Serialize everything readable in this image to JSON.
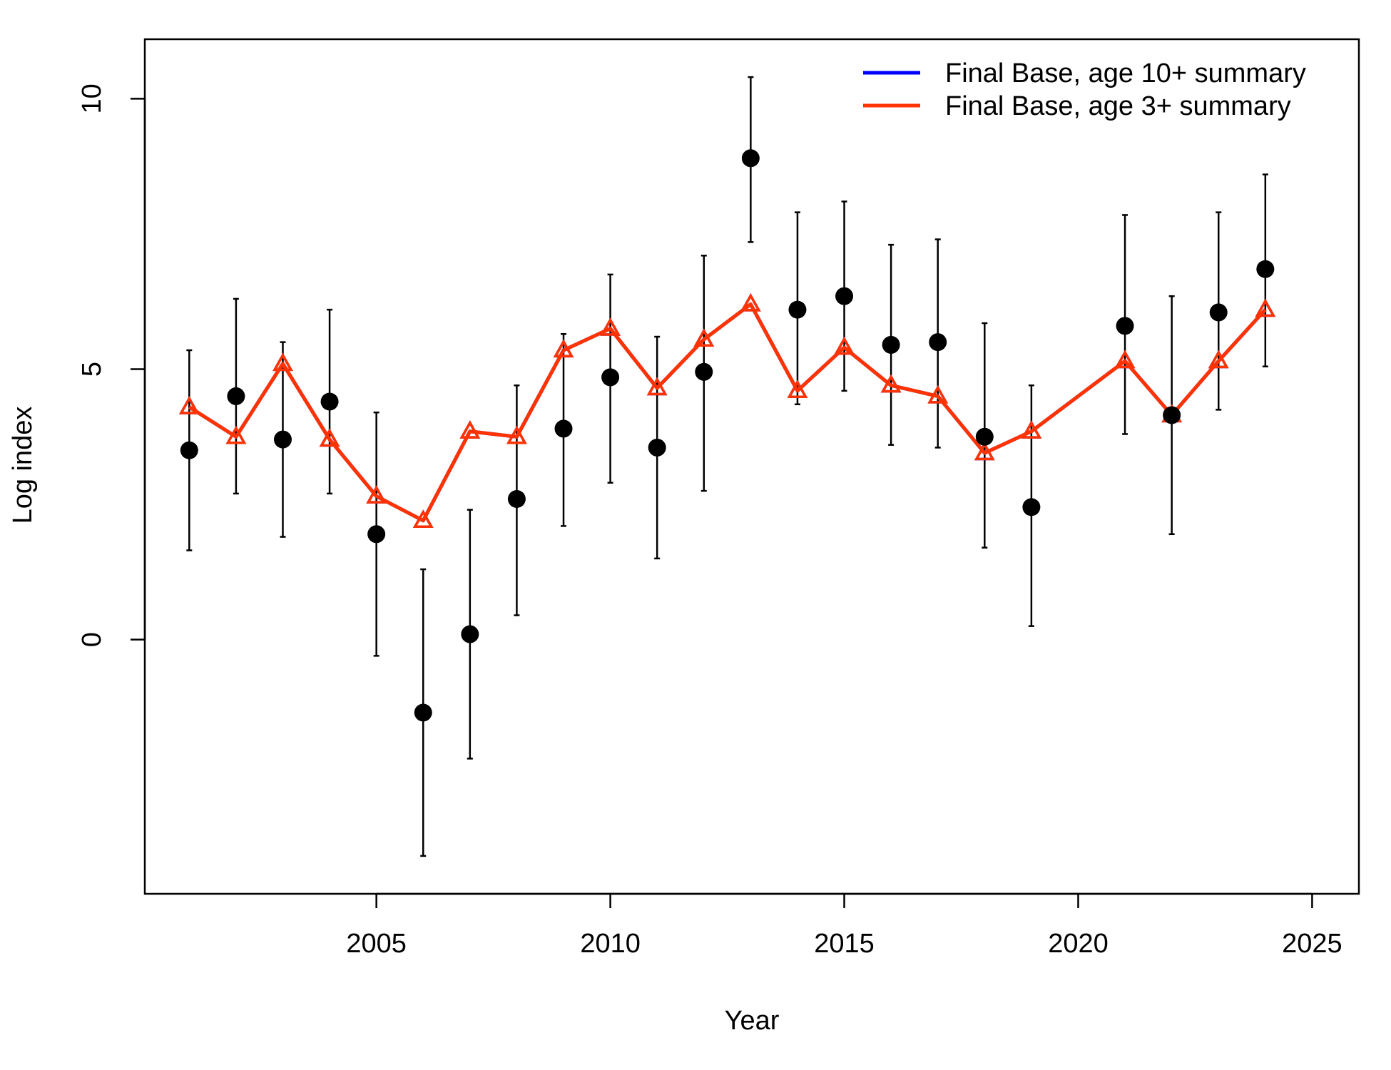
{
  "chart_data": {
    "type": "line",
    "xlabel": "Year",
    "ylabel": "Log index",
    "xlim": [
      2000.05,
      2026
    ],
    "ylim": [
      -4.7,
      11.1
    ],
    "xticks": [
      2005,
      2010,
      2015,
      2020,
      2025
    ],
    "yticks": [
      0,
      5,
      10
    ],
    "legend_position": "top-right",
    "observed": {
      "x": [
        2001,
        2002,
        2003,
        2004,
        2005,
        2006,
        2007,
        2008,
        2009,
        2010,
        2011,
        2012,
        2013,
        2014,
        2015,
        2016,
        2017,
        2018,
        2019,
        2021,
        2022,
        2023,
        2024
      ],
      "y": [
        3.5,
        4.5,
        3.7,
        4.4,
        1.95,
        -1.35,
        0.1,
        2.6,
        3.9,
        4.85,
        3.55,
        4.95,
        8.9,
        6.1,
        6.35,
        5.45,
        5.5,
        3.75,
        2.45,
        5.8,
        4.15,
        6.05,
        6.85
      ],
      "lower": [
        1.65,
        2.7,
        1.9,
        2.7,
        -0.3,
        -4.0,
        -2.2,
        0.45,
        2.1,
        2.9,
        1.5,
        2.75,
        7.35,
        4.35,
        4.6,
        3.6,
        3.55,
        1.7,
        0.25,
        3.8,
        1.95,
        4.25,
        5.05
      ],
      "upper": [
        5.35,
        6.3,
        5.5,
        6.1,
        4.2,
        1.3,
        2.4,
        4.7,
        5.65,
        6.75,
        5.6,
        7.1,
        10.4,
        7.9,
        8.1,
        7.3,
        7.4,
        5.85,
        4.7,
        7.85,
        6.35,
        7.9,
        8.6
      ]
    },
    "series": [
      {
        "name": "Final Base, age 10+ summary",
        "color": "#0000ff",
        "x": [
          2001,
          2002,
          2003,
          2004,
          2005,
          2006,
          2007,
          2008,
          2009,
          2010,
          2011,
          2012,
          2013,
          2014,
          2015,
          2016,
          2017,
          2018,
          2019,
          2021,
          2022,
          2023,
          2024
        ],
        "y": [
          4.3,
          3.75,
          5.1,
          3.7,
          2.65,
          2.2,
          3.85,
          3.75,
          5.35,
          5.75,
          4.65,
          5.55,
          6.2,
          4.6,
          5.4,
          4.7,
          4.5,
          3.45,
          3.85,
          5.15,
          4.15,
          5.15,
          6.1
        ]
      },
      {
        "name": "Final Base, age 3+ summary",
        "color": "#ff3300",
        "x": [
          2001,
          2002,
          2003,
          2004,
          2005,
          2006,
          2007,
          2008,
          2009,
          2010,
          2011,
          2012,
          2013,
          2014,
          2015,
          2016,
          2017,
          2018,
          2019,
          2021,
          2022,
          2023,
          2024
        ],
        "y": [
          4.3,
          3.75,
          5.1,
          3.7,
          2.65,
          2.2,
          3.85,
          3.75,
          5.35,
          5.75,
          4.65,
          5.55,
          6.2,
          4.6,
          5.4,
          4.7,
          4.5,
          3.45,
          3.85,
          5.15,
          4.15,
          5.15,
          6.1
        ]
      }
    ]
  }
}
